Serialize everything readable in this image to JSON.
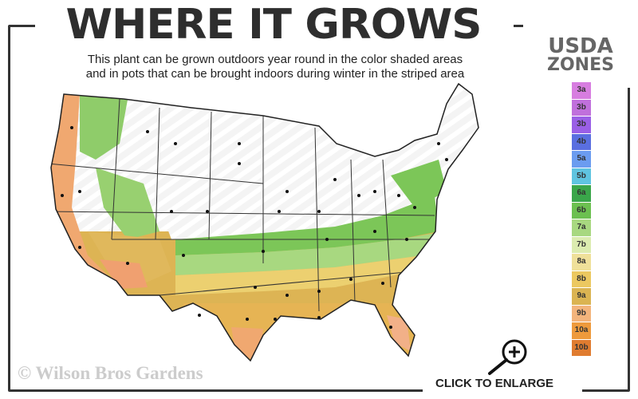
{
  "title": "WHERE IT GROWS",
  "subtitle_line1": "This plant can be grown outdoors year round in the color shaded areas",
  "subtitle_line2": "and in pots that can be brought indoors during winter in the striped area",
  "legend": {
    "title_line1": "USDA",
    "title_line2": "ZONES",
    "zones": [
      {
        "label": "3a",
        "color": "#d77de0"
      },
      {
        "label": "3b",
        "color": "#c070dc"
      },
      {
        "label": "3b",
        "color": "#9a5fe6"
      },
      {
        "label": "4b",
        "color": "#5a6fe0"
      },
      {
        "label": "5a",
        "color": "#6b9cf0"
      },
      {
        "label": "5b",
        "color": "#5fc4e0"
      },
      {
        "label": "6a",
        "color": "#3aa64a"
      },
      {
        "label": "6b",
        "color": "#6cc050"
      },
      {
        "label": "7a",
        "color": "#a8d880"
      },
      {
        "label": "7b",
        "color": "#dcecb0"
      },
      {
        "label": "8a",
        "color": "#efe09a"
      },
      {
        "label": "8b",
        "color": "#ecc860"
      },
      {
        "label": "9a",
        "color": "#dbb452"
      },
      {
        "label": "9b",
        "color": "#f3b47c"
      },
      {
        "label": "10a",
        "color": "#ee9a3c"
      },
      {
        "label": "10b",
        "color": "#e07c30"
      }
    ]
  },
  "copyright": "© Wilson Bros Gardens",
  "enlarge_label": "CLICK TO ENLARGE",
  "icons": {
    "enlarge": "magnifier-plus-icon"
  }
}
